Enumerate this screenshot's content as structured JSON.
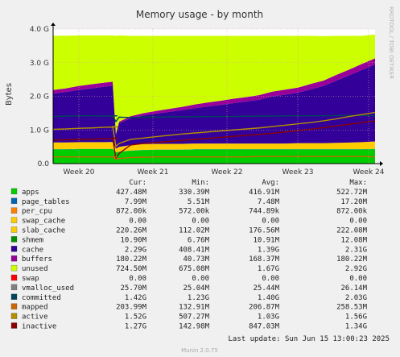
{
  "chart_data": {
    "type": "area",
    "title": "Memory usage - by month",
    "ylabel": "Bytes",
    "ylim": [
      0,
      4.0
    ],
    "y_unit": "G",
    "yticks": [
      {
        "value": 0,
        "label": "0.0"
      },
      {
        "value": 1.0,
        "label": "1.0 G"
      },
      {
        "value": 2.0,
        "label": "2.0 G"
      },
      {
        "value": 3.0,
        "label": "3.0 G"
      },
      {
        "value": 4.0,
        "label": "4.0 G"
      }
    ],
    "xlim": [
      0,
      100
    ],
    "xticks": [
      {
        "value": 8,
        "label": "Week 20"
      },
      {
        "value": 31,
        "label": "Week 21"
      },
      {
        "value": 54,
        "label": "Week 22"
      },
      {
        "value": 76,
        "label": "Week 23"
      },
      {
        "value": 98,
        "label": "Week 24"
      }
    ],
    "grid": true,
    "x": [
      0,
      4,
      8,
      12,
      16,
      20,
      18.5,
      19.5,
      20.5,
      24,
      28,
      32,
      36,
      40,
      44,
      48,
      52,
      56,
      60,
      64,
      68,
      72,
      76,
      80,
      84,
      88,
      92,
      96,
      100
    ],
    "stacked_series": [
      {
        "name": "apps",
        "color": "#00cc00",
        "values": [
          0.42,
          0.42,
          0.43,
          0.43,
          0.43,
          0.43,
          0.43,
          0.33,
          0.35,
          0.38,
          0.4,
          0.41,
          0.41,
          0.41,
          0.42,
          0.42,
          0.42,
          0.42,
          0.42,
          0.42,
          0.42,
          0.42,
          0.42,
          0.42,
          0.42,
          0.42,
          0.42,
          0.42,
          0.43
        ]
      },
      {
        "name": "page_tables",
        "color": "#0066b3",
        "values": [
          0.008,
          0.008,
          0.008,
          0.008,
          0.008,
          0.008,
          0.008,
          0.006,
          0.007,
          0.007,
          0.007,
          0.007,
          0.007,
          0.007,
          0.007,
          0.007,
          0.007,
          0.007,
          0.007,
          0.007,
          0.007,
          0.007,
          0.007,
          0.007,
          0.007,
          0.007,
          0.007,
          0.007,
          0.008
        ]
      },
      {
        "name": "slab_cache",
        "color": "#ffcc00",
        "values": [
          0.2,
          0.2,
          0.2,
          0.2,
          0.2,
          0.21,
          0.21,
          0.11,
          0.14,
          0.16,
          0.17,
          0.17,
          0.17,
          0.17,
          0.17,
          0.17,
          0.17,
          0.17,
          0.17,
          0.17,
          0.17,
          0.17,
          0.18,
          0.18,
          0.18,
          0.19,
          0.2,
          0.21,
          0.22
        ]
      },
      {
        "name": "cache",
        "color": "#330099",
        "values": [
          1.45,
          1.5,
          1.55,
          1.6,
          1.65,
          1.68,
          1.7,
          0.4,
          0.7,
          0.8,
          0.85,
          0.9,
          0.95,
          1.0,
          1.05,
          1.1,
          1.15,
          1.2,
          1.25,
          1.3,
          1.4,
          1.45,
          1.5,
          1.6,
          1.7,
          1.85,
          2.0,
          2.15,
          2.29
        ]
      },
      {
        "name": "buffers",
        "color": "#990099",
        "values": [
          0.11,
          0.11,
          0.12,
          0.12,
          0.12,
          0.12,
          0.12,
          0.04,
          0.05,
          0.06,
          0.07,
          0.08,
          0.09,
          0.1,
          0.11,
          0.12,
          0.12,
          0.13,
          0.13,
          0.14,
          0.14,
          0.15,
          0.15,
          0.16,
          0.16,
          0.17,
          0.17,
          0.18,
          0.18
        ]
      },
      {
        "name": "unused",
        "color": "#ccff00",
        "values": [
          1.61,
          1.56,
          1.5,
          1.45,
          1.4,
          1.36,
          1.34,
          2.91,
          2.56,
          2.39,
          2.3,
          2.23,
          2.17,
          2.11,
          2.04,
          1.98,
          1.93,
          1.87,
          1.82,
          1.76,
          1.66,
          1.6,
          1.54,
          1.43,
          1.32,
          1.16,
          1.0,
          0.83,
          0.71
        ]
      }
    ],
    "line_series": [
      {
        "name": "committed",
        "color": "#00455a",
        "values": [
          1.4,
          1.41,
          1.42,
          1.42,
          1.41,
          1.42,
          1.42,
          1.25,
          1.38,
          1.37,
          1.38,
          1.38,
          1.39,
          1.39,
          1.39,
          1.4,
          1.4,
          1.4,
          1.41,
          1.41,
          1.41,
          1.42,
          1.42,
          1.42,
          1.42,
          1.43,
          1.43,
          1.43,
          1.42
        ]
      },
      {
        "name": "active",
        "color": "#b38f00",
        "values": [
          1.02,
          1.03,
          1.05,
          1.06,
          1.08,
          1.09,
          1.1,
          0.51,
          0.6,
          0.72,
          0.76,
          0.8,
          0.84,
          0.88,
          0.91,
          0.94,
          0.97,
          1.0,
          1.03,
          1.06,
          1.1,
          1.14,
          1.18,
          1.22,
          1.27,
          1.33,
          1.4,
          1.46,
          1.52
        ]
      },
      {
        "name": "inactive",
        "color": "#8a0000",
        "values": [
          0.7,
          0.71,
          0.72,
          0.73,
          0.74,
          0.75,
          0.76,
          0.15,
          0.3,
          0.55,
          0.6,
          0.63,
          0.66,
          0.69,
          0.72,
          0.75,
          0.78,
          0.81,
          0.84,
          0.87,
          0.9,
          0.94,
          0.98,
          1.02,
          1.07,
          1.12,
          1.17,
          1.22,
          1.27
        ]
      },
      {
        "name": "mapped",
        "color": "#cc6600",
        "values": [
          0.2,
          0.2,
          0.2,
          0.2,
          0.2,
          0.2,
          0.2,
          0.13,
          0.15,
          0.18,
          0.19,
          0.2,
          0.2,
          0.2,
          0.2,
          0.2,
          0.2,
          0.2,
          0.2,
          0.21,
          0.21,
          0.21,
          0.21,
          0.21,
          0.21,
          0.21,
          0.21,
          0.21,
          0.2
        ]
      }
    ],
    "legend_header": [
      "Cur:",
      "Min:",
      "Avg:",
      "Max:"
    ],
    "legend": [
      {
        "name": "apps",
        "color": "#00cc00",
        "cur": "427.48M",
        "min": "330.39M",
        "avg": "416.91M",
        "max": "522.72M"
      },
      {
        "name": "page_tables",
        "color": "#0066b3",
        "cur": "7.99M",
        "min": "5.51M",
        "avg": "7.48M",
        "max": "17.20M"
      },
      {
        "name": "per_cpu",
        "color": "#ff8000",
        "cur": "872.00k",
        "min": "572.00k",
        "avg": "744.89k",
        "max": "872.00k"
      },
      {
        "name": "swap_cache",
        "color": "#ffcc00",
        "cur": "0.00",
        "min": "0.00",
        "avg": "0.00",
        "max": "0.00"
      },
      {
        "name": "slab_cache",
        "color": "#ffcc00",
        "cur": "220.26M",
        "min": "112.02M",
        "avg": "176.56M",
        "max": "222.08M"
      },
      {
        "name": "shmem",
        "color": "#008f00",
        "cur": "10.90M",
        "min": "6.76M",
        "avg": "10.91M",
        "max": "12.08M"
      },
      {
        "name": "cache",
        "color": "#330099",
        "cur": "2.29G",
        "min": "408.41M",
        "avg": "1.39G",
        "max": "2.31G"
      },
      {
        "name": "buffers",
        "color": "#990099",
        "cur": "180.22M",
        "min": "40.73M",
        "avg": "168.37M",
        "max": "180.22M"
      },
      {
        "name": "unused",
        "color": "#ccff00",
        "cur": "724.50M",
        "min": "675.08M",
        "avg": "1.67G",
        "max": "2.92G"
      },
      {
        "name": "swap",
        "color": "#ff0000",
        "cur": "0.00",
        "min": "0.00",
        "avg": "0.00",
        "max": "0.00"
      },
      {
        "name": "vmalloc_used",
        "color": "#808080",
        "cur": "25.70M",
        "min": "25.04M",
        "avg": "25.44M",
        "max": "26.14M"
      },
      {
        "name": "committed",
        "color": "#00455a",
        "cur": "1.42G",
        "min": "1.23G",
        "avg": "1.40G",
        "max": "2.03G"
      },
      {
        "name": "mapped",
        "color": "#cc6600",
        "cur": "203.99M",
        "min": "132.91M",
        "avg": "206.87M",
        "max": "258.53M"
      },
      {
        "name": "active",
        "color": "#b38f00",
        "cur": "1.52G",
        "min": "507.27M",
        "avg": "1.03G",
        "max": "1.56G"
      },
      {
        "name": "inactive",
        "color": "#8a0000",
        "cur": "1.27G",
        "min": "142.98M",
        "avg": "847.03M",
        "max": "1.34G"
      }
    ],
    "last_update": "Last update: Sun Jun 15 13:00:23 2025",
    "side_label": "RRDTOOL / TOBI OETIKER",
    "footer": "Munin 2.0.75",
    "colors": {
      "background": "#f0f0f0",
      "plot_bg": "#ffffff",
      "grid": "#e0a0a0"
    }
  }
}
